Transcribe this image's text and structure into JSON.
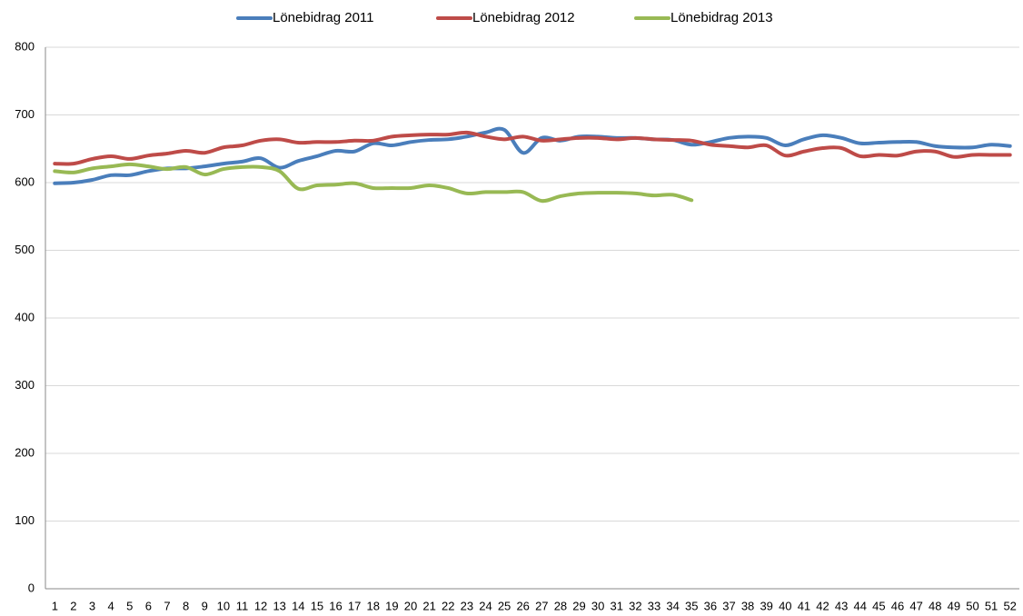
{
  "chart_data": {
    "type": "line",
    "categories": [
      "1",
      "2",
      "3",
      "4",
      "5",
      "6",
      "7",
      "8",
      "9",
      "10",
      "11",
      "12",
      "13",
      "14",
      "15",
      "16",
      "17",
      "18",
      "19",
      "20",
      "21",
      "22",
      "23",
      "24",
      "25",
      "26",
      "27",
      "28",
      "29",
      "30",
      "31",
      "32",
      "33",
      "34",
      "35",
      "36",
      "37",
      "38",
      "39",
      "40",
      "41",
      "42",
      "43",
      "44",
      "45",
      "46",
      "47",
      "48",
      "49",
      "50",
      "51",
      "52"
    ],
    "series": [
      {
        "name": "Lönebidrag 2011",
        "color": "#4a7ebb",
        "values": [
          599,
          600,
          604,
          611,
          611,
          617,
          621,
          621,
          624,
          628,
          631,
          636,
          622,
          632,
          639,
          647,
          646,
          658,
          655,
          660,
          663,
          664,
          668,
          674,
          678,
          644,
          666,
          662,
          668,
          668,
          666,
          666,
          664,
          663,
          656,
          660,
          666,
          668,
          666,
          655,
          664,
          670,
          666,
          658,
          659,
          660,
          660,
          654,
          652,
          652,
          656,
          654
        ]
      },
      {
        "name": "Lönebidrag 2012",
        "color": "#be4b48",
        "values": [
          628,
          628,
          635,
          639,
          635,
          640,
          643,
          647,
          644,
          652,
          655,
          662,
          664,
          659,
          660,
          660,
          662,
          662,
          668,
          670,
          671,
          671,
          674,
          668,
          664,
          668,
          662,
          664,
          666,
          666,
          664,
          666,
          664,
          663,
          662,
          656,
          654,
          652,
          655,
          640,
          646,
          651,
          651,
          639,
          641,
          640,
          646,
          646,
          638,
          641,
          641,
          641
        ]
      },
      {
        "name": "Lönebidrag 2013",
        "color": "#98b954",
        "values": [
          617,
          615,
          621,
          624,
          627,
          624,
          620,
          623,
          612,
          620,
          623,
          623,
          617,
          591,
          596,
          597,
          599,
          592,
          592,
          592,
          596,
          592,
          584,
          586,
          586,
          586,
          573,
          580,
          584,
          585,
          585,
          584,
          581,
          582,
          574,
          null,
          null,
          null,
          null,
          null,
          null,
          null,
          null,
          null,
          null,
          null,
          null,
          null,
          null,
          null,
          null,
          null
        ]
      }
    ],
    "ylim": [
      0,
      800
    ],
    "yticks": [
      0,
      100,
      200,
      300,
      400,
      500,
      600,
      700,
      800
    ],
    "grid": true,
    "legend": "top"
  }
}
